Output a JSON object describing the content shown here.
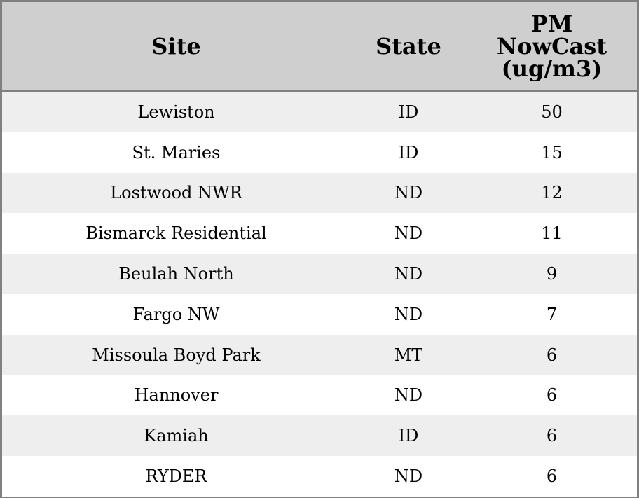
{
  "chart_data": {
    "type": "table",
    "columns": [
      "Site",
      "State",
      "PM NowCast (ug/m3)"
    ],
    "header_lines": [
      [
        "Site"
      ],
      [
        "State"
      ],
      [
        "PM",
        "NowCast",
        "(ug/m3)"
      ]
    ],
    "rows": [
      [
        "Lewiston",
        "ID",
        "50"
      ],
      [
        "St. Maries",
        "ID",
        "15"
      ],
      [
        "Lostwood NWR",
        "ND",
        "12"
      ],
      [
        "Bismarck Residential",
        "ND",
        "11"
      ],
      [
        "Beulah North",
        "ND",
        "9"
      ],
      [
        "Fargo NW",
        "ND",
        "7"
      ],
      [
        "Missoula Boyd Park",
        "MT",
        "6"
      ],
      [
        "Hannover",
        "ND",
        "6"
      ],
      [
        "Kamiah",
        "ID",
        "6"
      ],
      [
        "RYDER",
        "ND",
        "6"
      ]
    ],
    "colors": {
      "header_bg": "#cfcfcf",
      "stripe": "#eeeeee",
      "border": "#808080"
    }
  }
}
